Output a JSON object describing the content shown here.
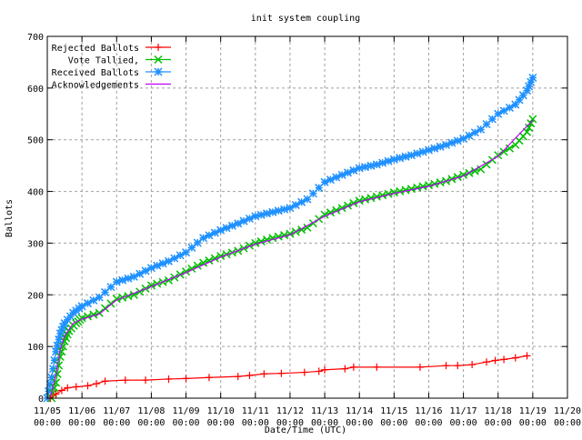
{
  "chart_data": {
    "type": "line",
    "title": "init system coupling",
    "xlabel": "Date/Time (UTC)",
    "ylabel": "Ballots",
    "ylim": [
      0,
      700
    ],
    "yticks": [
      0,
      100,
      200,
      300,
      400,
      500,
      600,
      700
    ],
    "xlim": [
      "11/05 00:00",
      "11/20 00:00"
    ],
    "xticks": [
      "11/05 00:00",
      "11/06 00:00",
      "11/07 00:00",
      "11/08 00:00",
      "11/09 00:00",
      "11/10 00:00",
      "11/11 00:00",
      "11/12 00:00",
      "11/13 00:00",
      "11/14 00:00",
      "11/15 00:00",
      "11/16 00:00",
      "11/17 00:00",
      "11/18 00:00",
      "11/19 00:00",
      "11/20 00:00"
    ],
    "grid": true,
    "legend_position": "top-left",
    "series": [
      {
        "name": "Rejected Ballots",
        "color": "#ff0000",
        "marker": "plus",
        "points": [
          [
            "11/05 02:00",
            0
          ],
          [
            "11/05 06:00",
            8
          ],
          [
            "11/05 10:00",
            15
          ],
          [
            "11/05 14:00",
            20
          ],
          [
            "11/05 20:00",
            22
          ],
          [
            "11/06 04:00",
            24
          ],
          [
            "11/06 10:00",
            28
          ],
          [
            "11/06 16:00",
            33
          ],
          [
            "11/07 06:00",
            35
          ],
          [
            "11/07 20:00",
            35
          ],
          [
            "11/08 12:00",
            37
          ],
          [
            "11/09 00:00",
            38
          ],
          [
            "11/09 16:00",
            40
          ],
          [
            "11/10 12:00",
            42
          ],
          [
            "11/10 20:00",
            44
          ],
          [
            "11/11 06:00",
            47
          ],
          [
            "11/11 18:00",
            48
          ],
          [
            "11/12 10:00",
            50
          ],
          [
            "11/12 20:00",
            52
          ],
          [
            "11/13 00:00",
            55
          ],
          [
            "11/13 14:00",
            57
          ],
          [
            "11/13 20:00",
            60
          ],
          [
            "11/14 12:00",
            60
          ],
          [
            "11/15 18:00",
            60
          ],
          [
            "11/16 12:00",
            63
          ],
          [
            "11/16 20:00",
            63
          ],
          [
            "11/17 06:00",
            65
          ],
          [
            "11/17 16:00",
            70
          ],
          [
            "11/17 22:00",
            73
          ],
          [
            "11/18 04:00",
            75
          ],
          [
            "11/18 12:00",
            78
          ],
          [
            "11/18 20:00",
            82
          ]
        ]
      },
      {
        "name": "Vote Tallied,",
        "color": "#00c000",
        "marker": "cross",
        "points": [
          [
            "11/05 03:00",
            0
          ],
          [
            "11/05 06:00",
            30
          ],
          [
            "11/05 09:00",
            80
          ],
          [
            "11/05 12:00",
            110
          ],
          [
            "11/05 15:00",
            130
          ],
          [
            "11/05 20:00",
            145
          ],
          [
            "11/06 00:00",
            155
          ],
          [
            "11/06 12:00",
            165
          ],
          [
            "11/07 00:00",
            192
          ],
          [
            "11/07 12:00",
            200
          ],
          [
            "11/08 00:00",
            218
          ],
          [
            "11/08 12:00",
            228
          ],
          [
            "11/09 00:00",
            245
          ],
          [
            "11/09 12:00",
            262
          ],
          [
            "11/10 00:00",
            275
          ],
          [
            "11/10 12:00",
            285
          ],
          [
            "11/11 00:00",
            300
          ],
          [
            "11/11 12:00",
            310
          ],
          [
            "11/12 00:00",
            318
          ],
          [
            "11/12 12:00",
            330
          ],
          [
            "11/13 00:00",
            355
          ],
          [
            "11/13 12:00",
            368
          ],
          [
            "11/14 00:00",
            382
          ],
          [
            "11/14 12:00",
            390
          ],
          [
            "11/15 00:00",
            398
          ],
          [
            "11/15 12:00",
            405
          ],
          [
            "11/16 00:00",
            412
          ],
          [
            "11/16 12:00",
            420
          ],
          [
            "11/17 00:00",
            432
          ],
          [
            "11/17 12:00",
            443
          ],
          [
            "11/18 00:00",
            470
          ],
          [
            "11/18 12:00",
            490
          ],
          [
            "11/18 20:00",
            515
          ],
          [
            "11/19 00:00",
            540
          ]
        ]
      },
      {
        "name": "Received Ballots",
        "color": "#1e90ff",
        "marker": "star",
        "points": [
          [
            "11/05 00:00",
            0
          ],
          [
            "11/05 03:00",
            40
          ],
          [
            "11/05 06:00",
            90
          ],
          [
            "11/05 09:00",
            125
          ],
          [
            "11/05 12:00",
            145
          ],
          [
            "11/05 18:00",
            165
          ],
          [
            "11/06 00:00",
            178
          ],
          [
            "11/06 12:00",
            195
          ],
          [
            "11/07 00:00",
            225
          ],
          [
            "11/07 12:00",
            235
          ],
          [
            "11/08 00:00",
            252
          ],
          [
            "11/08 12:00",
            265
          ],
          [
            "11/09 00:00",
            282
          ],
          [
            "11/09 12:00",
            310
          ],
          [
            "11/10 00:00",
            325
          ],
          [
            "11/10 12:00",
            338
          ],
          [
            "11/11 00:00",
            352
          ],
          [
            "11/11 12:00",
            360
          ],
          [
            "11/12 00:00",
            368
          ],
          [
            "11/12 12:00",
            385
          ],
          [
            "11/13 00:00",
            418
          ],
          [
            "11/13 12:00",
            432
          ],
          [
            "11/14 00:00",
            445
          ],
          [
            "11/14 12:00",
            452
          ],
          [
            "11/15 00:00",
            462
          ],
          [
            "11/15 12:00",
            470
          ],
          [
            "11/16 00:00",
            480
          ],
          [
            "11/16 12:00",
            490
          ],
          [
            "11/17 00:00",
            502
          ],
          [
            "11/17 12:00",
            520
          ],
          [
            "11/18 00:00",
            550
          ],
          [
            "11/18 12:00",
            568
          ],
          [
            "11/18 20:00",
            595
          ],
          [
            "11/19 00:00",
            620
          ]
        ]
      },
      {
        "name": "Acknowledgements",
        "color": "#c000ff",
        "marker": "none",
        "points": [
          [
            "11/05 02:00",
            0
          ],
          [
            "11/05 06:00",
            45
          ],
          [
            "11/05 09:00",
            95
          ],
          [
            "11/05 12:00",
            120
          ],
          [
            "11/05 18:00",
            145
          ],
          [
            "11/06 00:00",
            153
          ],
          [
            "11/06 12:00",
            163
          ],
          [
            "11/07 00:00",
            190
          ],
          [
            "11/08 00:00",
            216
          ],
          [
            "11/09 00:00",
            243
          ],
          [
            "11/10 00:00",
            273
          ],
          [
            "11/11 00:00",
            298
          ],
          [
            "11/12 00:00",
            316
          ],
          [
            "11/13 00:00",
            352
          ],
          [
            "11/14 00:00",
            380
          ],
          [
            "11/15 00:00",
            396
          ],
          [
            "11/16 00:00",
            410
          ],
          [
            "11/17 00:00",
            430
          ],
          [
            "11/18 00:00",
            468
          ],
          [
            "11/19 00:00",
            538
          ]
        ]
      }
    ]
  }
}
